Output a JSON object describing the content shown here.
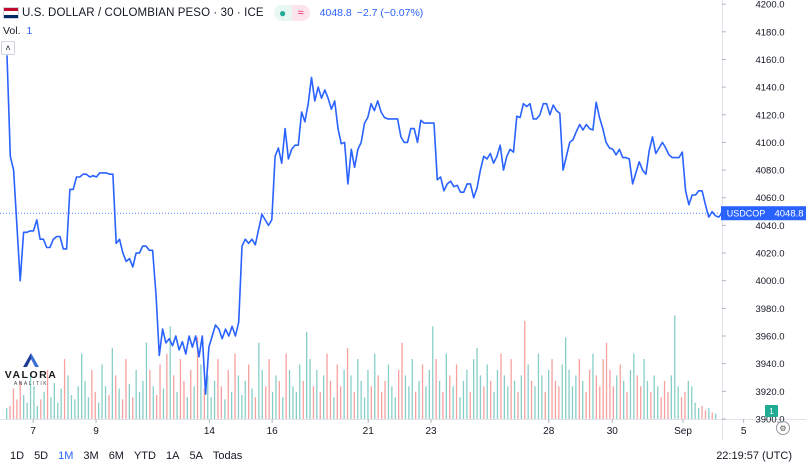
{
  "header": {
    "symbol_title": "U.S. DOLLAR / COLOMBIAN PESO · 30 · ICE",
    "last_price": "4048.8",
    "change": "−2.7 (−0.07%)",
    "status_icon": "market-status-dot-icon",
    "delayed_icon": "delayed-data-icon",
    "flag_colors": [
      "#bf0a30",
      "#ffffff",
      "#002868"
    ]
  },
  "volume_legend": {
    "label": "Vol.",
    "value": "1"
  },
  "collapse_icon": "chevron-up-icon",
  "price_tag": {
    "symbol": "USDCOP",
    "price": "4048.8"
  },
  "brand": {
    "name": "VALORA",
    "sub": "ANALITIK"
  },
  "toolbar": {
    "ranges": [
      "1D",
      "5D",
      "1M",
      "3M",
      "6M",
      "YTD",
      "1A",
      "5A",
      "Todas"
    ],
    "active_range": "1M",
    "clock": "22:19:57 (UTC)"
  },
  "settings_icon": "settings-gear-icon",
  "colors": {
    "line": "#2962ff",
    "up_volume": "#26a69a",
    "down_volume": "#ef5350",
    "tag_bg": "#2962ff",
    "axis_text": "#131722"
  },
  "chart_data": {
    "type": "line",
    "symbol": "USDCOP",
    "y_axis": {
      "ticks": [
        3900,
        3920,
        3940,
        3960,
        3980,
        4000,
        4020,
        4040,
        4060,
        4080,
        4100,
        4120,
        4140,
        4160,
        4180,
        4200
      ],
      "tick_labels": [
        "3900.0",
        "3920.0",
        "3940.0",
        "3960.0",
        "3980.0",
        "4000.0",
        "4020.0",
        "4040.0",
        "4060.0",
        "4080.0",
        "4100.0",
        "4120.0",
        "4140.0",
        "4160.0",
        "4180.0",
        "4200.0"
      ],
      "range": [
        3900,
        4203
      ]
    },
    "x_axis": {
      "ticks": [
        "7",
        "9",
        "14",
        "16",
        "21",
        "23",
        "28",
        "30",
        "Sep",
        "5"
      ],
      "tick_positions": [
        0.046,
        0.133,
        0.29,
        0.377,
        0.51,
        0.597,
        0.76,
        0.848,
        0.946,
        1.03
      ]
    },
    "last_value": 4048.8,
    "series": [
      {
        "values": [
          4163,
          4090,
          4080,
          4040,
          4000,
          4035,
          4035,
          4036,
          4036,
          4044,
          4030,
          4030,
          4024,
          4024,
          4030,
          4032,
          4032,
          4023,
          4023,
          4066,
          4066,
          4075,
          4075,
          4077,
          4077,
          4075,
          4076,
          4075,
          4078,
          4078,
          4078,
          4077,
          4077,
          4027,
          4030,
          4020,
          4014,
          4016,
          4010,
          4020,
          4020,
          4025,
          4025,
          4022,
          4022,
          3990,
          3946,
          3965,
          3955,
          3958,
          3953,
          3960,
          3950,
          3956,
          3947,
          3960,
          3952,
          3960,
          3945,
          3960,
          3918,
          3952,
          3960,
          3968,
          3965,
          3958,
          3965,
          3960,
          3967,
          3960,
          3970,
          4025,
          4030,
          4027,
          4030,
          4026,
          4037,
          4048,
          4044,
          4040,
          4044,
          4090,
          4096,
          4085,
          4110,
          4088,
          4095,
          4098,
          4098,
          4122,
          4115,
          4128,
          4147,
          4130,
          4140,
          4132,
          4138,
          4132,
          4124,
          4130,
          4110,
          4099,
          4100,
          4070,
          4095,
          4082,
          4095,
          4100,
          4114,
          4118,
          4128,
          4123,
          4130,
          4122,
          4118,
          4117,
          4117,
          4117,
          4117,
          4104,
          4100,
          4100,
          4110,
          4110,
          4100,
          4116,
          4114,
          4114,
          4114,
          4114,
          4073,
          4075,
          4065,
          4070,
          4072,
          4068,
          4069,
          4064,
          4064,
          4070,
          4070,
          4060,
          4067,
          4080,
          4090,
          4088,
          4092,
          4085,
          4090,
          4098,
          4080,
          4090,
          4095,
          4093,
          4119,
          4118,
          4128,
          4126,
          4128,
          4117,
          4117,
          4120,
          4128,
          4128,
          4120,
          4127,
          4123,
          4121,
          4080,
          4090,
          4100,
          4102,
          4108,
          4113,
          4109,
          4113,
          4110,
          4109,
          4129,
          4118,
          4110,
          4100,
          4096,
          4095,
          4091,
          4095,
          4089,
          4089,
          4088,
          4070,
          4078,
          4086,
          4080,
          4077,
          4094,
          4104,
          4092,
          4096,
          4100,
          4096,
          4091,
          4089,
          4089,
          4089,
          4093,
          4065,
          4055,
          4062,
          4062,
          4065,
          4065,
          4055,
          4046,
          4050,
          4047,
          4046,
          4048.8
        ]
      },
      {
        "name": "Vol.",
        "type": "bar",
        "values": [
          0.1,
          0.12,
          0.28,
          0.18,
          0.35,
          0.22,
          0.15,
          0.4,
          0.3,
          0.12,
          0.18,
          0.25,
          0.45,
          0.2,
          0.33,
          0.15,
          0.28,
          0.55,
          0.4,
          0.22,
          0.18,
          0.3,
          0.6,
          0.35,
          0.2,
          0.45,
          0.25,
          0.15,
          0.5,
          0.3,
          0.22,
          0.65,
          0.4,
          0.28,
          0.18,
          0.55,
          0.32,
          0.2,
          0.45,
          0.25,
          0.35,
          0.7,
          0.45,
          0.3,
          0.22,
          0.5,
          0.28,
          0.6,
          0.85,
          0.4,
          0.25,
          0.55,
          0.35,
          0.2,
          0.45,
          0.3,
          0.75,
          0.5,
          0.28,
          0.4,
          0.2,
          0.35,
          0.55,
          0.3,
          0.18,
          0.45,
          0.25,
          0.6,
          0.4,
          0.22,
          0.35,
          0.5,
          0.28,
          0.2,
          0.7,
          0.45,
          0.3,
          0.55,
          0.25,
          0.4,
          0.35,
          0.2,
          0.6,
          0.45,
          0.3,
          0.25,
          0.5,
          0.35,
          0.8,
          0.55,
          0.3,
          0.45,
          0.25,
          0.4,
          0.6,
          0.35,
          0.2,
          0.5,
          0.3,
          0.45,
          0.65,
          0.4,
          0.25,
          0.55,
          0.35,
          0.2,
          0.45,
          0.3,
          0.6,
          0.4,
          0.25,
          0.35,
          0.5,
          0.3,
          0.2,
          0.45,
          0.7,
          0.4,
          0.3,
          0.55,
          0.25,
          0.35,
          0.5,
          0.3,
          0.45,
          0.85,
          0.55,
          0.35,
          0.25,
          0.6,
          0.4,
          0.3,
          0.5,
          0.2,
          0.35,
          0.45,
          0.25,
          0.55,
          0.65,
          0.4,
          0.3,
          0.5,
          0.35,
          0.25,
          0.45,
          0.6,
          0.4,
          0.3,
          0.55,
          0.35,
          0.25,
          0.4,
          0.9,
          0.5,
          0.35,
          0.3,
          0.6,
          0.4,
          0.25,
          0.45,
          0.55,
          0.35,
          0.3,
          0.5,
          0.75,
          0.45,
          0.3,
          0.4,
          0.55,
          0.35,
          0.25,
          0.45,
          0.6,
          0.4,
          0.3,
          0.55,
          0.7,
          0.45,
          0.3,
          0.4,
          0.5,
          0.35,
          0.25,
          0.45,
          0.6,
          0.4,
          0.3,
          0.55,
          0.35,
          0.25,
          0.4,
          0.3,
          0.2,
          0.35,
          0.25,
          0.4,
          0.95,
          0.3,
          0.2,
          0.25,
          0.35,
          0.3,
          0.15,
          0.1,
          0.12,
          0.08,
          0.1,
          0.06,
          0.05
        ]
      }
    ]
  }
}
